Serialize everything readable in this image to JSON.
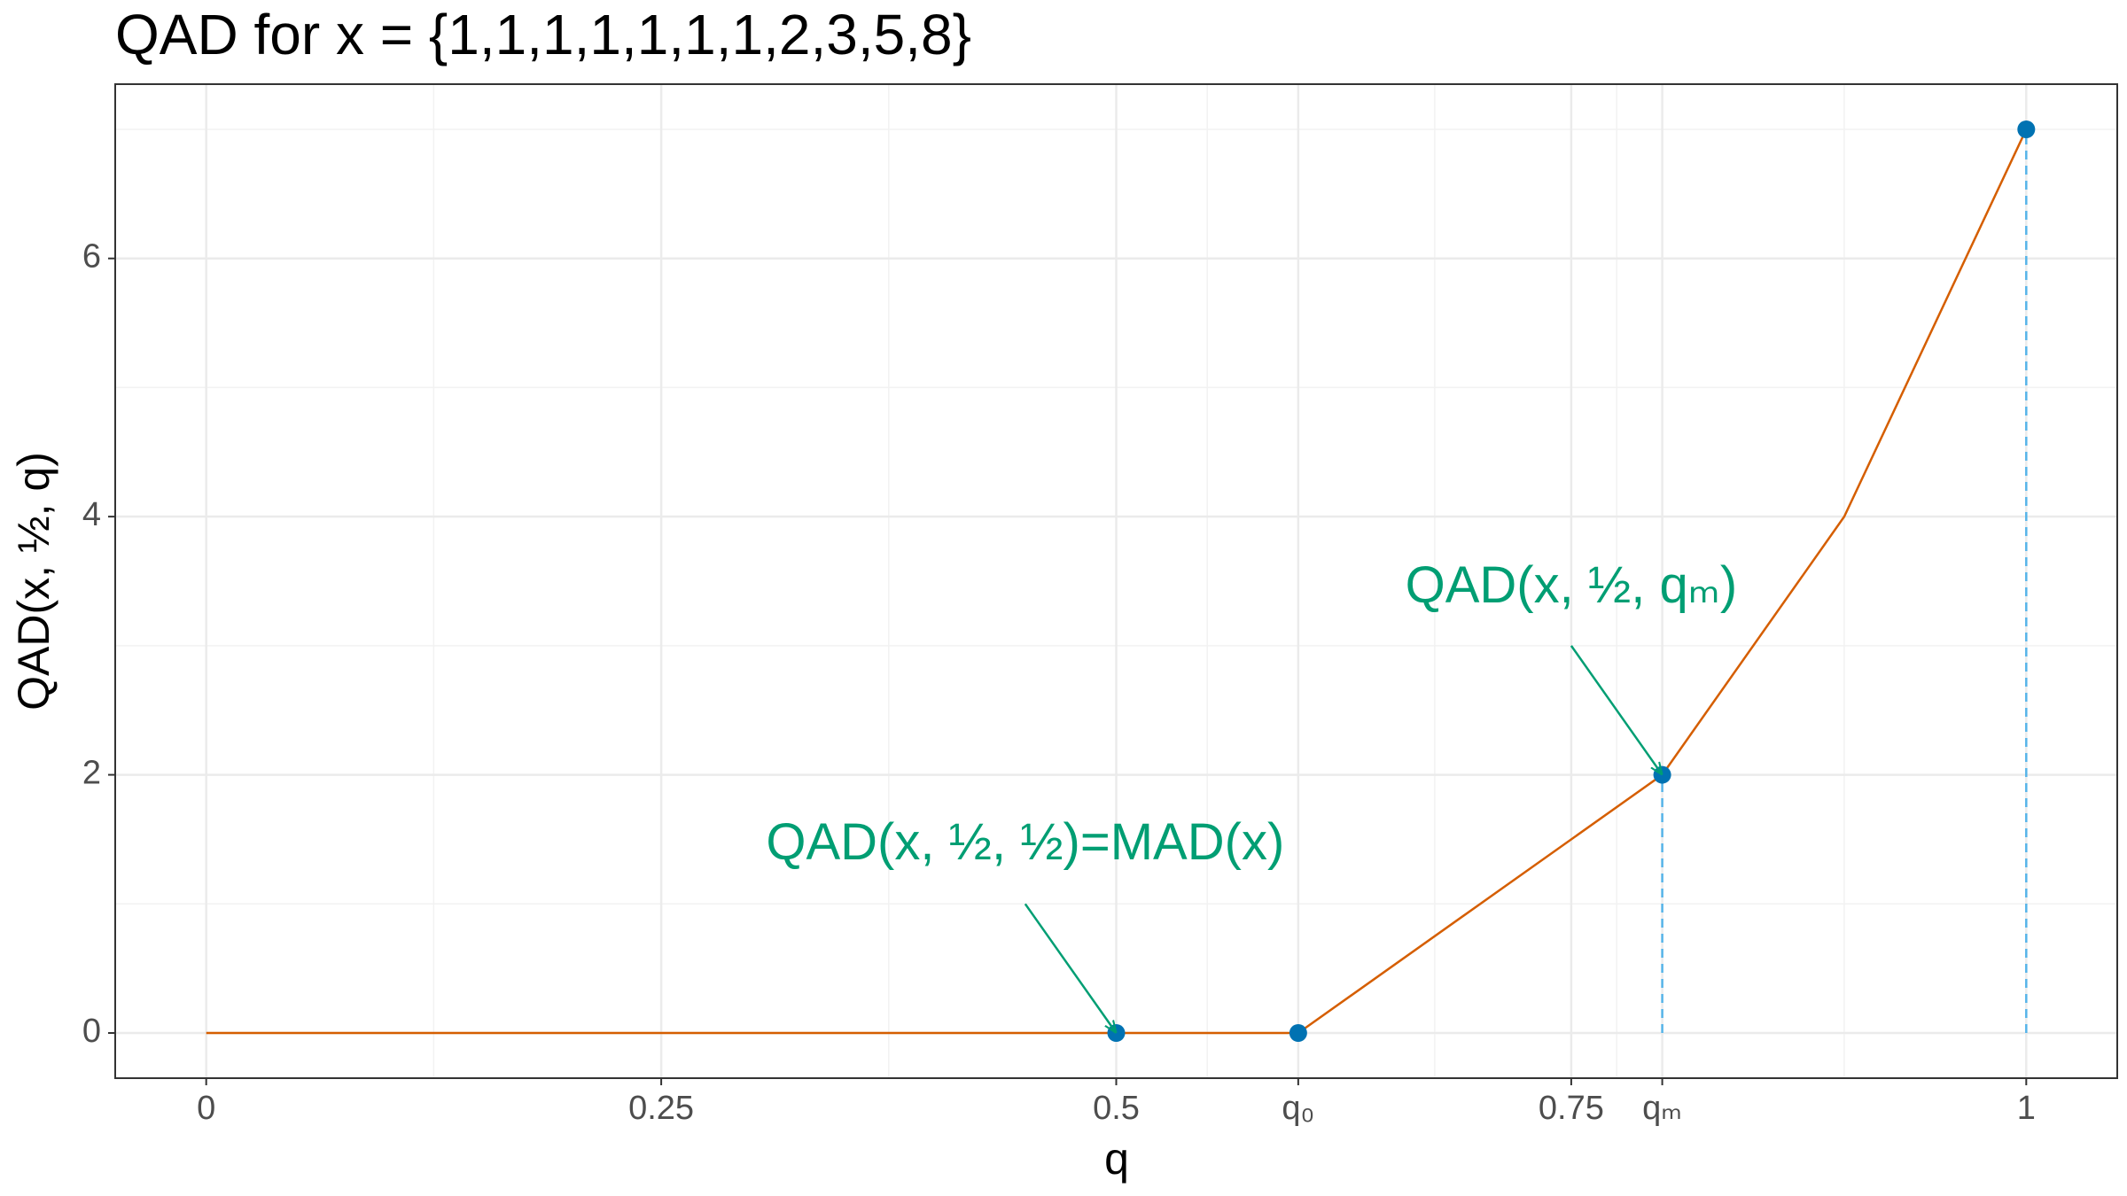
{
  "chart_data": {
    "type": "line",
    "title": "QAD for x = {1,1,1,1,1,1,1,2,3,5,8}",
    "x_label": "q",
    "y_label": "QAD(x, ½, q)",
    "xlim": [
      -0.05,
      1.05
    ],
    "ylim": [
      -0.35,
      7.35
    ],
    "xticks": [
      0,
      0.25,
      0.5,
      {
        "value": 0.6,
        "label": "q₀"
      },
      0.75,
      {
        "value": 0.8,
        "label": "qₘ"
      },
      1
    ],
    "yticks": [
      0,
      2,
      4,
      6
    ],
    "grid": true,
    "series": [
      {
        "color": "#D55E00",
        "x": [
          0,
          0.5,
          0.6,
          0.8,
          0.9,
          1
        ],
        "values": [
          0,
          0,
          0,
          2,
          4,
          7
        ]
      }
    ],
    "points": {
      "color": "#0072B2",
      "x": [
        0.5,
        0.6,
        0.8,
        1
      ],
      "values": [
        0,
        0,
        2,
        7
      ]
    },
    "dashed_lines": {
      "color": "#56B4E9",
      "x": [
        0.8,
        1
      ],
      "values": [
        2,
        7
      ]
    },
    "annotations": [
      {
        "text": "QAD(x, ½, ½)=MAD(x)",
        "color": "#009E73",
        "x": 0.45,
        "y": 1.45,
        "arrow_from": [
          0.45,
          1.0
        ],
        "arrow_to": [
          0.5,
          0
        ]
      },
      {
        "text": "QAD(x, ½, qₘ)",
        "color": "#009E73",
        "x": 0.75,
        "y": 3.44,
        "arrow_from": [
          0.75,
          3.0
        ],
        "arrow_to": [
          0.8,
          2
        ]
      }
    ]
  }
}
